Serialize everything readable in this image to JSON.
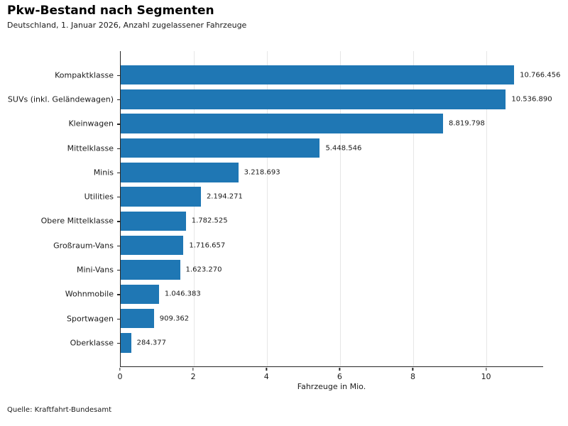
{
  "header": {
    "title": "Pkw-Bestand nach Segmenten",
    "subtitle": "Deutschland, 1. Januar 2026, Anzahl zugelassener Fahrzeuge"
  },
  "chart_data": {
    "type": "bar",
    "orientation": "horizontal",
    "title": "Pkw-Bestand nach Segmenten",
    "subtitle": "Deutschland, 1. Januar 2026, Anzahl zugelassener Fahrzeuge",
    "categories": [
      "Kompaktklasse",
      "SUVs (inkl. Geländewagen)",
      "Kleinwagen",
      "Mittelklasse",
      "Minis",
      "Utilities",
      "Obere Mittelklasse",
      "Großraum-Vans",
      "Mini-Vans",
      "Wohnmobile",
      "Sportwagen",
      "Oberklasse"
    ],
    "values": [
      10766456,
      10536890,
      8819798,
      5448546,
      3218693,
      2194271,
      1782525,
      1716657,
      1623270,
      1046383,
      909362,
      284377
    ],
    "values_mio": [
      10.766456,
      10.53689,
      8.819798,
      5.448546,
      3.218693,
      2.194271,
      1.782525,
      1.716657,
      1.62327,
      1.046383,
      0.909362,
      0.284377
    ],
    "value_labels": [
      "10.766.456",
      "10.536.890",
      "8.819.798",
      "5.448.546",
      "3.218.693",
      "2.194.271",
      "1.782.525",
      "1.716.657",
      "1.623.270",
      "1.046.383",
      "909.362",
      "284.377"
    ],
    "xlabel": "Fahrzeuge in Mio.",
    "xticks": [
      0,
      2,
      4,
      6,
      8,
      10
    ],
    "xlim": [
      0,
      11.56
    ],
    "bar_color": "#1f77b4",
    "grid": "vertical, light gray, behind bars",
    "legend": "none"
  },
  "footer": {
    "source": "Quelle: Kraftfahrt-Bundesamt"
  }
}
